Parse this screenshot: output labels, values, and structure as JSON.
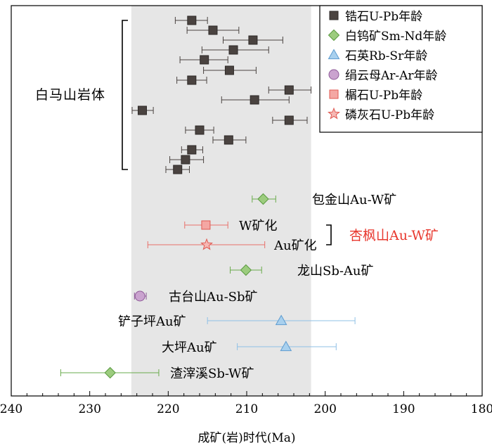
{
  "chart_data": {
    "type": "scatter",
    "xlabel": "成矿(岩)时代(Ma)",
    "xlim": [
      240,
      180
    ],
    "xticks": [
      240,
      230,
      220,
      210,
      200,
      190,
      180
    ],
    "shaded_band": [
      224.7,
      201.8
    ],
    "legend": [
      {
        "label": "锆石U-Pb年龄",
        "marker": "square",
        "color": "#4a4340",
        "edge": "#2e2a28"
      },
      {
        "label": "白钨矿Sm-Nd年龄",
        "marker": "diamond",
        "color": "#9ccc7e",
        "edge": "#5a9a40"
      },
      {
        "label": "石英Rb-Sr年龄",
        "marker": "triangle",
        "color": "#a8d0ee",
        "edge": "#5e9cd0"
      },
      {
        "label": "绢云母Ar-Ar年龄",
        "marker": "circle",
        "color": "#caa3cf",
        "edge": "#8e5a98"
      },
      {
        "label": "榍石U-Pb年龄",
        "marker": "square",
        "color": "#f4a7a3",
        "edge": "#e05a52"
      },
      {
        "label": "磷灰石U-Pb年龄",
        "marker": "star",
        "color": "#f6b8b4",
        "edge": "#e05a52"
      }
    ],
    "bracket_label": "白马山岩体",
    "series": [
      {
        "name": "锆石U-Pb年龄",
        "marker": "square",
        "color": "#4a4340",
        "err_color": "#4a4340",
        "points": [
          {
            "x": 217.0,
            "err": [
              219.1,
              215.0
            ]
          },
          {
            "x": 214.3,
            "err": [
              217.6,
              211.0
            ]
          },
          {
            "x": 209.2,
            "err": [
              213.0,
              205.4
            ]
          },
          {
            "x": 211.7,
            "err": [
              215.7,
              207.2
            ]
          },
          {
            "x": 215.4,
            "err": [
              218.5,
              212.4
            ]
          },
          {
            "x": 212.2,
            "err": [
              215.5,
              208.8
            ]
          },
          {
            "x": 217.0,
            "err": [
              218.9,
              215.1
            ]
          },
          {
            "x": 204.6,
            "err": [
              207.2,
              201.8
            ]
          },
          {
            "x": 209.0,
            "err": [
              213.2,
              204.6
            ]
          },
          {
            "x": 223.3,
            "err": [
              224.6,
              221.9
            ]
          },
          {
            "x": 204.6,
            "err": [
              206.7,
              202.3
            ]
          },
          {
            "x": 216.0,
            "err": [
              217.8,
              214.2
            ]
          },
          {
            "x": 212.3,
            "err": [
              214.3,
              210.1
            ]
          },
          {
            "x": 217.0,
            "err": [
              218.3,
              215.6
            ]
          },
          {
            "x": 217.8,
            "err": [
              219.8,
              215.5
            ]
          },
          {
            "x": 218.8,
            "err": [
              220.3,
              217.3
            ]
          }
        ]
      },
      {
        "name": "白钨矿Sm-Nd年龄",
        "marker": "diamond",
        "color": "#9ccc7e",
        "err_color": "#6aab4c",
        "points": [
          {
            "x": 207.9,
            "err": [
              209.3,
              206.3
            ],
            "label": "包金山Au-W矿"
          },
          {
            "x": 210.1,
            "err": [
              212.1,
              208.1
            ],
            "label": "龙山Sb-Au矿"
          },
          {
            "x": 227.4,
            "err": [
              233.7,
              221.2
            ],
            "label": "渣滓溪Sb-W矿"
          }
        ]
      },
      {
        "name": "榍石U-Pb年龄",
        "marker": "square",
        "color": "#f4a7a3",
        "err_color": "#e8706a",
        "points": [
          {
            "x": 215.2,
            "err": [
              217.9,
              212.4
            ],
            "label": "W矿化"
          }
        ]
      },
      {
        "name": "磷灰石U-Pb年龄",
        "marker": "star",
        "color": "#f6b8b4",
        "err_color": "#e8706a",
        "points": [
          {
            "x": 215.1,
            "err": [
              222.6,
              207.7
            ],
            "label": "Au矿化"
          }
        ]
      },
      {
        "name": "绢云母Ar-Ar年龄",
        "marker": "circle",
        "color": "#caa3cf",
        "err_color": "#8e5a98",
        "points": [
          {
            "x": 223.6,
            "err": [
              224.3,
              222.8
            ],
            "label": "古台山Au-Sb矿"
          }
        ]
      },
      {
        "name": "石英Rb-Sr年龄",
        "marker": "triangle",
        "color": "#a8d0ee",
        "err_color": "#8fc0e6",
        "points": [
          {
            "x": 205.6,
            "err": [
              215.0,
              196.2
            ],
            "label": "铲子坪Au矿"
          },
          {
            "x": 205.0,
            "err": [
              211.2,
              198.6
            ],
            "label": "大坪Au矿"
          }
        ]
      }
    ],
    "group_label": "杏枫山Au-W矿",
    "group_label_color": "#e8382e"
  }
}
